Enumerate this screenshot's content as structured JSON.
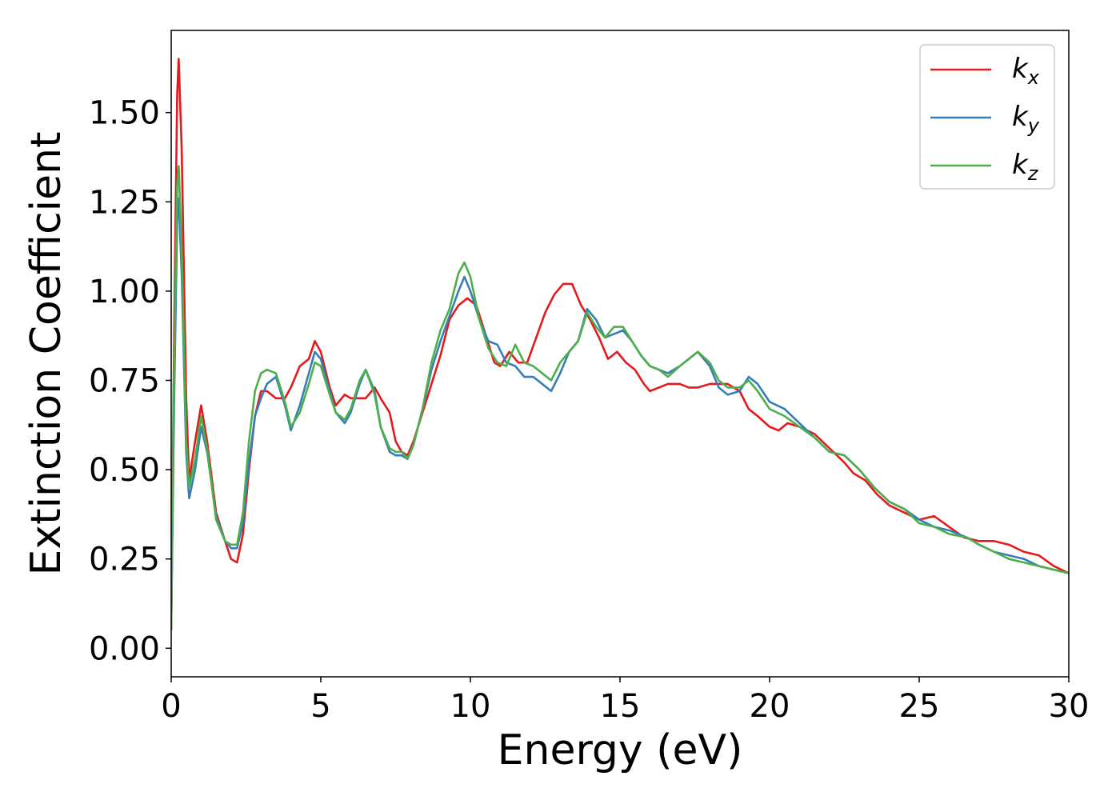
{
  "chart_data": {
    "type": "line",
    "xlabel": "Energy (eV)",
    "ylabel": "Extinction Coefficient",
    "xlim": [
      0,
      30
    ],
    "ylim": [
      -0.08,
      1.73
    ],
    "xticks": [
      0,
      5,
      10,
      15,
      20,
      25,
      30
    ],
    "xtick_labels": [
      "0",
      "5",
      "10",
      "15",
      "20",
      "25",
      "30"
    ],
    "yticks": [
      0.0,
      0.25,
      0.5,
      0.75,
      1.0,
      1.25,
      1.5
    ],
    "ytick_labels": [
      "0.00",
      "0.25",
      "0.50",
      "0.75",
      "1.00",
      "1.25",
      "1.50"
    ],
    "grid": false,
    "legend_position": "top-right",
    "series": [
      {
        "name": "k_x",
        "legend_base": "k",
        "legend_sub": "x",
        "color": "#e41a1c",
        "points": [
          [
            0,
            0.05
          ],
          [
            0.1,
            0.9
          ],
          [
            0.2,
            1.55
          ],
          [
            0.25,
            1.65
          ],
          [
            0.35,
            1.4
          ],
          [
            0.5,
            0.7
          ],
          [
            0.6,
            0.47
          ],
          [
            0.8,
            0.58
          ],
          [
            1.0,
            0.68
          ],
          [
            1.2,
            0.58
          ],
          [
            1.5,
            0.38
          ],
          [
            1.8,
            0.3
          ],
          [
            2.0,
            0.25
          ],
          [
            2.2,
            0.24
          ],
          [
            2.4,
            0.32
          ],
          [
            2.6,
            0.5
          ],
          [
            2.8,
            0.65
          ],
          [
            3.0,
            0.72
          ],
          [
            3.2,
            0.72
          ],
          [
            3.5,
            0.7
          ],
          [
            3.8,
            0.7
          ],
          [
            4.0,
            0.73
          ],
          [
            4.3,
            0.79
          ],
          [
            4.6,
            0.81
          ],
          [
            4.8,
            0.86
          ],
          [
            5.0,
            0.83
          ],
          [
            5.3,
            0.73
          ],
          [
            5.5,
            0.68
          ],
          [
            5.8,
            0.71
          ],
          [
            6.0,
            0.7
          ],
          [
            6.3,
            0.7
          ],
          [
            6.5,
            0.7
          ],
          [
            6.8,
            0.73
          ],
          [
            7.0,
            0.7
          ],
          [
            7.3,
            0.66
          ],
          [
            7.5,
            0.58
          ],
          [
            7.7,
            0.55
          ],
          [
            7.9,
            0.54
          ],
          [
            8.1,
            0.58
          ],
          [
            8.4,
            0.66
          ],
          [
            8.7,
            0.74
          ],
          [
            9.0,
            0.82
          ],
          [
            9.3,
            0.92
          ],
          [
            9.6,
            0.96
          ],
          [
            9.9,
            0.98
          ],
          [
            10.2,
            0.96
          ],
          [
            10.5,
            0.88
          ],
          [
            10.8,
            0.8
          ],
          [
            11.0,
            0.79
          ],
          [
            11.3,
            0.83
          ],
          [
            11.6,
            0.8
          ],
          [
            11.9,
            0.8
          ],
          [
            12.2,
            0.87
          ],
          [
            12.5,
            0.94
          ],
          [
            12.8,
            0.99
          ],
          [
            13.1,
            1.02
          ],
          [
            13.4,
            1.02
          ],
          [
            13.7,
            0.96
          ],
          [
            14.0,
            0.92
          ],
          [
            14.3,
            0.87
          ],
          [
            14.6,
            0.81
          ],
          [
            14.9,
            0.83
          ],
          [
            15.2,
            0.8
          ],
          [
            15.5,
            0.78
          ],
          [
            15.8,
            0.74
          ],
          [
            16.0,
            0.72
          ],
          [
            16.3,
            0.73
          ],
          [
            16.6,
            0.74
          ],
          [
            17.0,
            0.74
          ],
          [
            17.3,
            0.73
          ],
          [
            17.6,
            0.73
          ],
          [
            18.0,
            0.74
          ],
          [
            18.3,
            0.74
          ],
          [
            18.6,
            0.74
          ],
          [
            19.0,
            0.72
          ],
          [
            19.3,
            0.67
          ],
          [
            19.6,
            0.65
          ],
          [
            20.0,
            0.62
          ],
          [
            20.3,
            0.61
          ],
          [
            20.6,
            0.63
          ],
          [
            21.0,
            0.62
          ],
          [
            21.5,
            0.6
          ],
          [
            22.0,
            0.56
          ],
          [
            22.5,
            0.52
          ],
          [
            22.8,
            0.49
          ],
          [
            23.2,
            0.47
          ],
          [
            23.6,
            0.43
          ],
          [
            24.0,
            0.4
          ],
          [
            24.5,
            0.38
          ],
          [
            25.0,
            0.36
          ],
          [
            25.5,
            0.37
          ],
          [
            26.0,
            0.34
          ],
          [
            26.5,
            0.31
          ],
          [
            27.0,
            0.3
          ],
          [
            27.5,
            0.3
          ],
          [
            28.0,
            0.29
          ],
          [
            28.5,
            0.27
          ],
          [
            29.0,
            0.26
          ],
          [
            29.5,
            0.23
          ],
          [
            30.0,
            0.21
          ]
        ]
      },
      {
        "name": "k_y",
        "legend_base": "k",
        "legend_sub": "y",
        "color": "#377eb8",
        "points": [
          [
            0,
            0.05
          ],
          [
            0.1,
            0.7
          ],
          [
            0.2,
            1.2
          ],
          [
            0.25,
            1.26
          ],
          [
            0.35,
            1.05
          ],
          [
            0.5,
            0.55
          ],
          [
            0.6,
            0.42
          ],
          [
            0.8,
            0.5
          ],
          [
            1.0,
            0.62
          ],
          [
            1.2,
            0.55
          ],
          [
            1.5,
            0.37
          ],
          [
            1.8,
            0.3
          ],
          [
            2.0,
            0.28
          ],
          [
            2.2,
            0.28
          ],
          [
            2.4,
            0.35
          ],
          [
            2.6,
            0.52
          ],
          [
            2.8,
            0.65
          ],
          [
            3.0,
            0.7
          ],
          [
            3.2,
            0.74
          ],
          [
            3.5,
            0.76
          ],
          [
            3.8,
            0.68
          ],
          [
            4.0,
            0.61
          ],
          [
            4.3,
            0.68
          ],
          [
            4.6,
            0.77
          ],
          [
            4.8,
            0.83
          ],
          [
            5.0,
            0.81
          ],
          [
            5.3,
            0.72
          ],
          [
            5.5,
            0.66
          ],
          [
            5.8,
            0.63
          ],
          [
            6.0,
            0.66
          ],
          [
            6.3,
            0.74
          ],
          [
            6.5,
            0.78
          ],
          [
            6.8,
            0.72
          ],
          [
            7.0,
            0.62
          ],
          [
            7.3,
            0.55
          ],
          [
            7.5,
            0.54
          ],
          [
            7.7,
            0.54
          ],
          [
            7.9,
            0.53
          ],
          [
            8.1,
            0.57
          ],
          [
            8.4,
            0.67
          ],
          [
            8.7,
            0.78
          ],
          [
            9.0,
            0.86
          ],
          [
            9.3,
            0.93
          ],
          [
            9.6,
            1.0
          ],
          [
            9.8,
            1.04
          ],
          [
            10.0,
            1.0
          ],
          [
            10.3,
            0.92
          ],
          [
            10.6,
            0.86
          ],
          [
            10.9,
            0.85
          ],
          [
            11.2,
            0.8
          ],
          [
            11.5,
            0.79
          ],
          [
            11.8,
            0.76
          ],
          [
            12.1,
            0.76
          ],
          [
            12.4,
            0.74
          ],
          [
            12.7,
            0.72
          ],
          [
            13.0,
            0.77
          ],
          [
            13.3,
            0.83
          ],
          [
            13.6,
            0.86
          ],
          [
            13.9,
            0.95
          ],
          [
            14.2,
            0.92
          ],
          [
            14.5,
            0.87
          ],
          [
            14.8,
            0.88
          ],
          [
            15.1,
            0.89
          ],
          [
            15.4,
            0.86
          ],
          [
            15.7,
            0.82
          ],
          [
            16.0,
            0.79
          ],
          [
            16.3,
            0.78
          ],
          [
            16.6,
            0.77
          ],
          [
            17.0,
            0.79
          ],
          [
            17.3,
            0.81
          ],
          [
            17.6,
            0.83
          ],
          [
            18.0,
            0.79
          ],
          [
            18.3,
            0.73
          ],
          [
            18.6,
            0.71
          ],
          [
            19.0,
            0.72
          ],
          [
            19.3,
            0.76
          ],
          [
            19.6,
            0.74
          ],
          [
            20.0,
            0.69
          ],
          [
            20.5,
            0.67
          ],
          [
            21.0,
            0.63
          ],
          [
            21.5,
            0.59
          ],
          [
            22.0,
            0.55
          ],
          [
            22.5,
            0.54
          ],
          [
            23.0,
            0.5
          ],
          [
            23.5,
            0.45
          ],
          [
            24.0,
            0.41
          ],
          [
            24.5,
            0.39
          ],
          [
            25.0,
            0.36
          ],
          [
            25.5,
            0.34
          ],
          [
            26.0,
            0.33
          ],
          [
            26.6,
            0.31
          ],
          [
            27.0,
            0.29
          ],
          [
            27.5,
            0.27
          ],
          [
            28.0,
            0.26
          ],
          [
            28.5,
            0.25
          ],
          [
            29.0,
            0.23
          ],
          [
            29.5,
            0.22
          ],
          [
            30.0,
            0.21
          ]
        ]
      },
      {
        "name": "k_z",
        "legend_base": "k",
        "legend_sub": "z",
        "color": "#4daf4a",
        "points": [
          [
            0,
            0.05
          ],
          [
            0.1,
            0.8
          ],
          [
            0.2,
            1.3
          ],
          [
            0.25,
            1.35
          ],
          [
            0.35,
            1.12
          ],
          [
            0.5,
            0.58
          ],
          [
            0.6,
            0.45
          ],
          [
            0.8,
            0.53
          ],
          [
            1.0,
            0.65
          ],
          [
            1.2,
            0.56
          ],
          [
            1.5,
            0.36
          ],
          [
            1.8,
            0.3
          ],
          [
            2.0,
            0.29
          ],
          [
            2.2,
            0.29
          ],
          [
            2.4,
            0.38
          ],
          [
            2.6,
            0.58
          ],
          [
            2.8,
            0.72
          ],
          [
            3.0,
            0.77
          ],
          [
            3.2,
            0.78
          ],
          [
            3.5,
            0.77
          ],
          [
            3.8,
            0.69
          ],
          [
            4.0,
            0.62
          ],
          [
            4.3,
            0.66
          ],
          [
            4.6,
            0.74
          ],
          [
            4.8,
            0.8
          ],
          [
            5.0,
            0.79
          ],
          [
            5.3,
            0.71
          ],
          [
            5.5,
            0.66
          ],
          [
            5.8,
            0.64
          ],
          [
            6.0,
            0.67
          ],
          [
            6.3,
            0.75
          ],
          [
            6.5,
            0.78
          ],
          [
            6.8,
            0.71
          ],
          [
            7.0,
            0.62
          ],
          [
            7.3,
            0.56
          ],
          [
            7.5,
            0.55
          ],
          [
            7.7,
            0.55
          ],
          [
            7.9,
            0.53
          ],
          [
            8.1,
            0.57
          ],
          [
            8.4,
            0.67
          ],
          [
            8.7,
            0.8
          ],
          [
            9.0,
            0.89
          ],
          [
            9.3,
            0.95
          ],
          [
            9.6,
            1.05
          ],
          [
            9.8,
            1.08
          ],
          [
            10.0,
            1.04
          ],
          [
            10.3,
            0.92
          ],
          [
            10.6,
            0.84
          ],
          [
            10.9,
            0.8
          ],
          [
            11.2,
            0.79
          ],
          [
            11.5,
            0.85
          ],
          [
            11.8,
            0.8
          ],
          [
            12.1,
            0.79
          ],
          [
            12.4,
            0.77
          ],
          [
            12.7,
            0.75
          ],
          [
            13.0,
            0.8
          ],
          [
            13.3,
            0.83
          ],
          [
            13.6,
            0.86
          ],
          [
            13.9,
            0.94
          ],
          [
            14.2,
            0.9
          ],
          [
            14.5,
            0.87
          ],
          [
            14.8,
            0.9
          ],
          [
            15.1,
            0.9
          ],
          [
            15.4,
            0.86
          ],
          [
            15.7,
            0.82
          ],
          [
            16.0,
            0.79
          ],
          [
            16.3,
            0.78
          ],
          [
            16.6,
            0.76
          ],
          [
            17.0,
            0.79
          ],
          [
            17.3,
            0.81
          ],
          [
            17.6,
            0.83
          ],
          [
            18.0,
            0.8
          ],
          [
            18.3,
            0.75
          ],
          [
            18.6,
            0.73
          ],
          [
            19.0,
            0.73
          ],
          [
            19.3,
            0.75
          ],
          [
            19.6,
            0.72
          ],
          [
            20.0,
            0.67
          ],
          [
            20.5,
            0.65
          ],
          [
            21.0,
            0.62
          ],
          [
            21.5,
            0.59
          ],
          [
            22.0,
            0.55
          ],
          [
            22.5,
            0.54
          ],
          [
            23.0,
            0.5
          ],
          [
            23.5,
            0.45
          ],
          [
            24.0,
            0.41
          ],
          [
            24.5,
            0.39
          ],
          [
            25.0,
            0.35
          ],
          [
            25.5,
            0.34
          ],
          [
            26.0,
            0.32
          ],
          [
            26.6,
            0.31
          ],
          [
            27.0,
            0.29
          ],
          [
            27.5,
            0.27
          ],
          [
            28.0,
            0.25
          ],
          [
            28.5,
            0.24
          ],
          [
            29.0,
            0.23
          ],
          [
            29.5,
            0.22
          ],
          [
            30.0,
            0.21
          ]
        ]
      }
    ]
  }
}
